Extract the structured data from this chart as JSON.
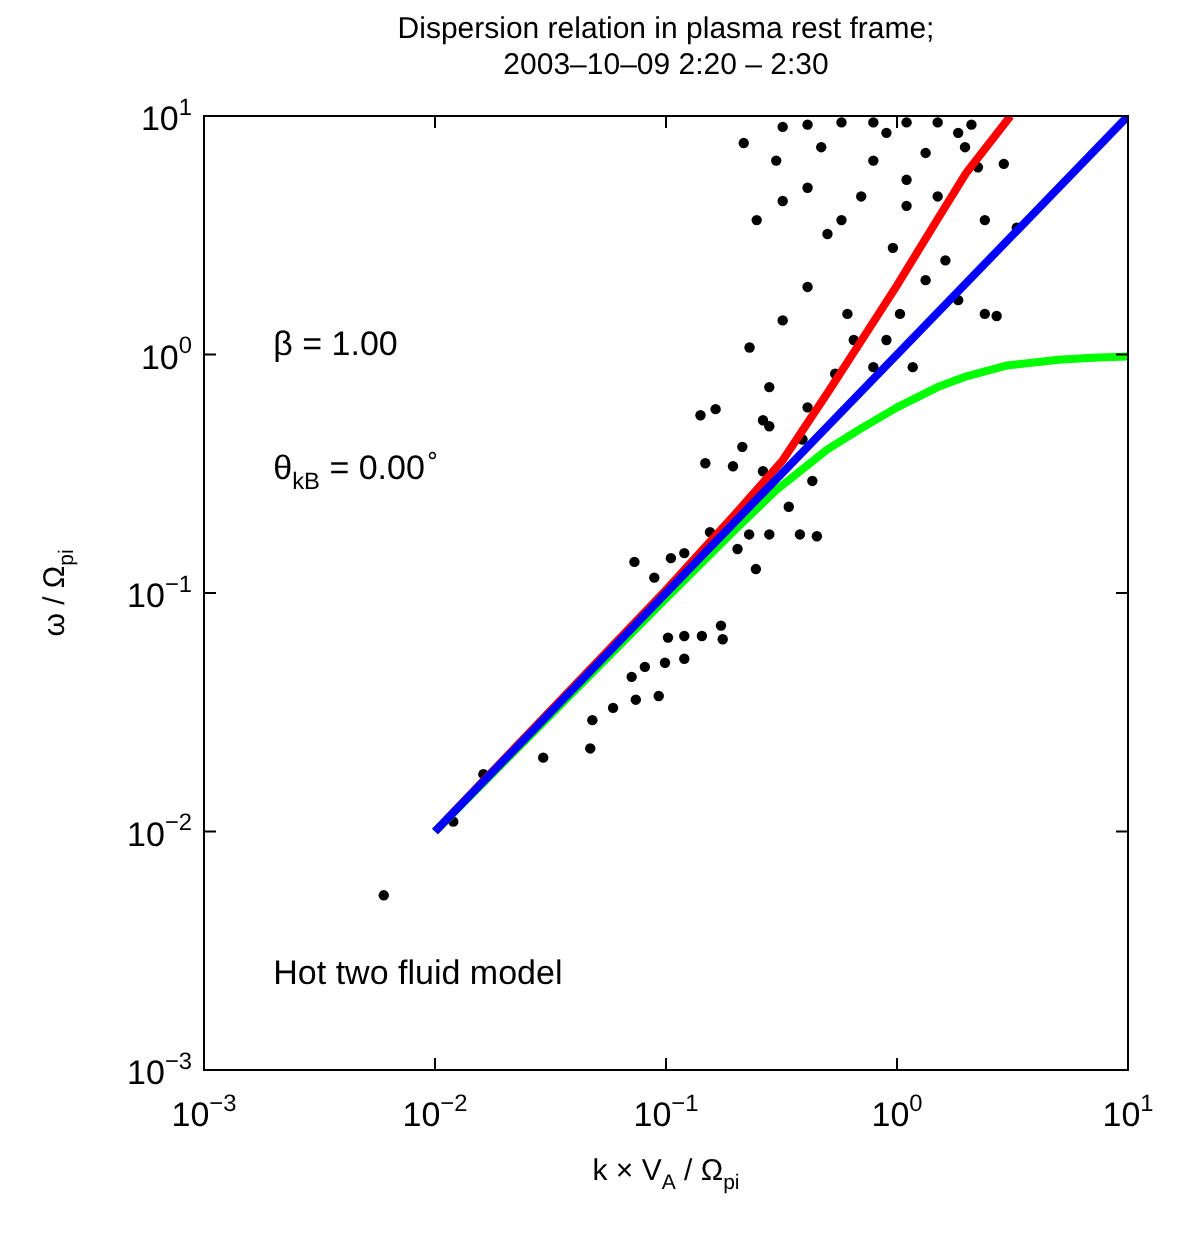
{
  "chart_data": {
    "type": "scatter",
    "title": "Dispersion relation in plasma rest frame;\n2003–10–09 2:20 – 2:30",
    "xlabel": "k × V$_{A}$ / Ω$_{pi}$",
    "ylabel": "ω / Ω$_{pi}$",
    "log": "xy",
    "xlim": [
      0.001,
      10
    ],
    "ylim": [
      0.001,
      10
    ],
    "xticks": [
      {
        "value": 0.001,
        "label": "10$^{−3}$"
      },
      {
        "value": 0.01,
        "label": "10$^{−2}$"
      },
      {
        "value": 0.1,
        "label": "10$^{−1}$"
      },
      {
        "value": 1,
        "label": "10$^{0}$"
      },
      {
        "value": 10,
        "label": "10$^{1}$"
      }
    ],
    "yticks": [
      {
        "value": 0.001,
        "label": "10$^{−3}$"
      },
      {
        "value": 0.01,
        "label": "10$^{−2}$"
      },
      {
        "value": 0.1,
        "label": "10$^{−1}$"
      },
      {
        "value": 1,
        "label": "10$^{0}$"
      },
      {
        "value": 10,
        "label": "10$^{1}$"
      }
    ],
    "grid": false,
    "legend": false,
    "annotations": [
      "β = 1.00",
      "θ$_{kB}$ = 0.00$^{∘}$",
      "Hot two fluid model"
    ],
    "series": [
      {
        "type": "scatter",
        "marker": "circle",
        "color": "#000000",
        "x": [
          0.006,
          0.012,
          0.0162,
          0.0294,
          0.047,
          0.048,
          0.059,
          0.074,
          0.093,
          0.071,
          0.081,
          0.099,
          0.12,
          0.102,
          0.12,
          0.143,
          0.173,
          0.176,
          0.073,
          0.089,
          0.105,
          0.12,
          0.155,
          0.204,
          0.245,
          0.229,
          0.28,
          0.38,
          0.45,
          0.148,
          0.195,
          0.141,
          0.164,
          0.214,
          0.263,
          0.34,
          0.43,
          0.28,
          0.39,
          0.217,
          0.32,
          0.41,
          0.575,
          0.79,
          1.1,
          1.5,
          2.1,
          0.47,
          0.79,
          1.33,
          1.97,
          2.9,
          0.41,
          0.32,
          0.7,
          1.1,
          2.4,
          3.3,
          0.247,
          0.5,
          0.96,
          1.62,
          2.4,
          2.7,
          1.84,
          0.41,
          0.32,
          0.61,
          0.9,
          1.17,
          0.79,
          0.23,
          0.28,
          0.263,
          0.41,
          0.54,
          0.65,
          1.03,
          1.33,
          1.1,
          0.575,
          1.5,
          0.3,
          0.9,
          1.84,
          2.24
        ],
        "values": [
          0.0054,
          0.011,
          0.0174,
          0.0204,
          0.0223,
          0.0293,
          0.033,
          0.0357,
          0.037,
          0.0445,
          0.049,
          0.051,
          0.053,
          0.065,
          0.066,
          0.066,
          0.073,
          0.064,
          0.135,
          0.116,
          0.14,
          0.147,
          0.18,
          0.153,
          0.126,
          0.176,
          0.176,
          0.176,
          0.173,
          0.35,
          0.34,
          0.556,
          0.59,
          0.41,
          0.324,
          0.23,
          0.295,
          0.5,
          0.44,
          7.7,
          9,
          9.2,
          9.4,
          9.4,
          9.4,
          9.4,
          9.2,
          7.4,
          6.5,
          7,
          7.4,
          6.3,
          5,
          4.4,
          4.6,
          4.2,
          3.66,
          3.4,
          3.66,
          3.2,
          2.8,
          2.48,
          1.48,
          1.45,
          1.69,
          1.92,
          1.39,
          1.48,
          1.15,
          0.885,
          0.885,
          1.07,
          0.73,
          0.53,
          0.6,
          0.83,
          1.15,
          1.48,
          2.05,
          5.4,
          3.66,
          4.6,
          6.5,
          8.5,
          8.5,
          6.1
        ]
      },
      {
        "type": "line",
        "marker": "none",
        "color": "#ff0000",
        "x": [
          0.01,
          0.1,
          0.2,
          0.32,
          0.5,
          0.7,
          1,
          1.5,
          2,
          3.1
        ],
        "values": [
          0.01,
          0.103,
          0.215,
          0.36,
          0.69,
          1.14,
          1.95,
          3.7,
          5.8,
          10
        ]
      },
      {
        "type": "line",
        "marker": "none",
        "color": "#00ff00",
        "x": [
          0.01,
          0.1,
          0.2,
          0.3,
          0.5,
          0.7,
          1,
          1.5,
          2,
          3,
          5,
          7,
          10
        ],
        "values": [
          0.01,
          0.095,
          0.185,
          0.27,
          0.4,
          0.49,
          0.6,
          0.73,
          0.81,
          0.9,
          0.95,
          0.97,
          0.98
        ]
      },
      {
        "type": "line",
        "marker": "none",
        "color": "#0000ff",
        "x": [
          0.01,
          10
        ],
        "values": [
          0.01,
          10
        ]
      }
    ]
  }
}
